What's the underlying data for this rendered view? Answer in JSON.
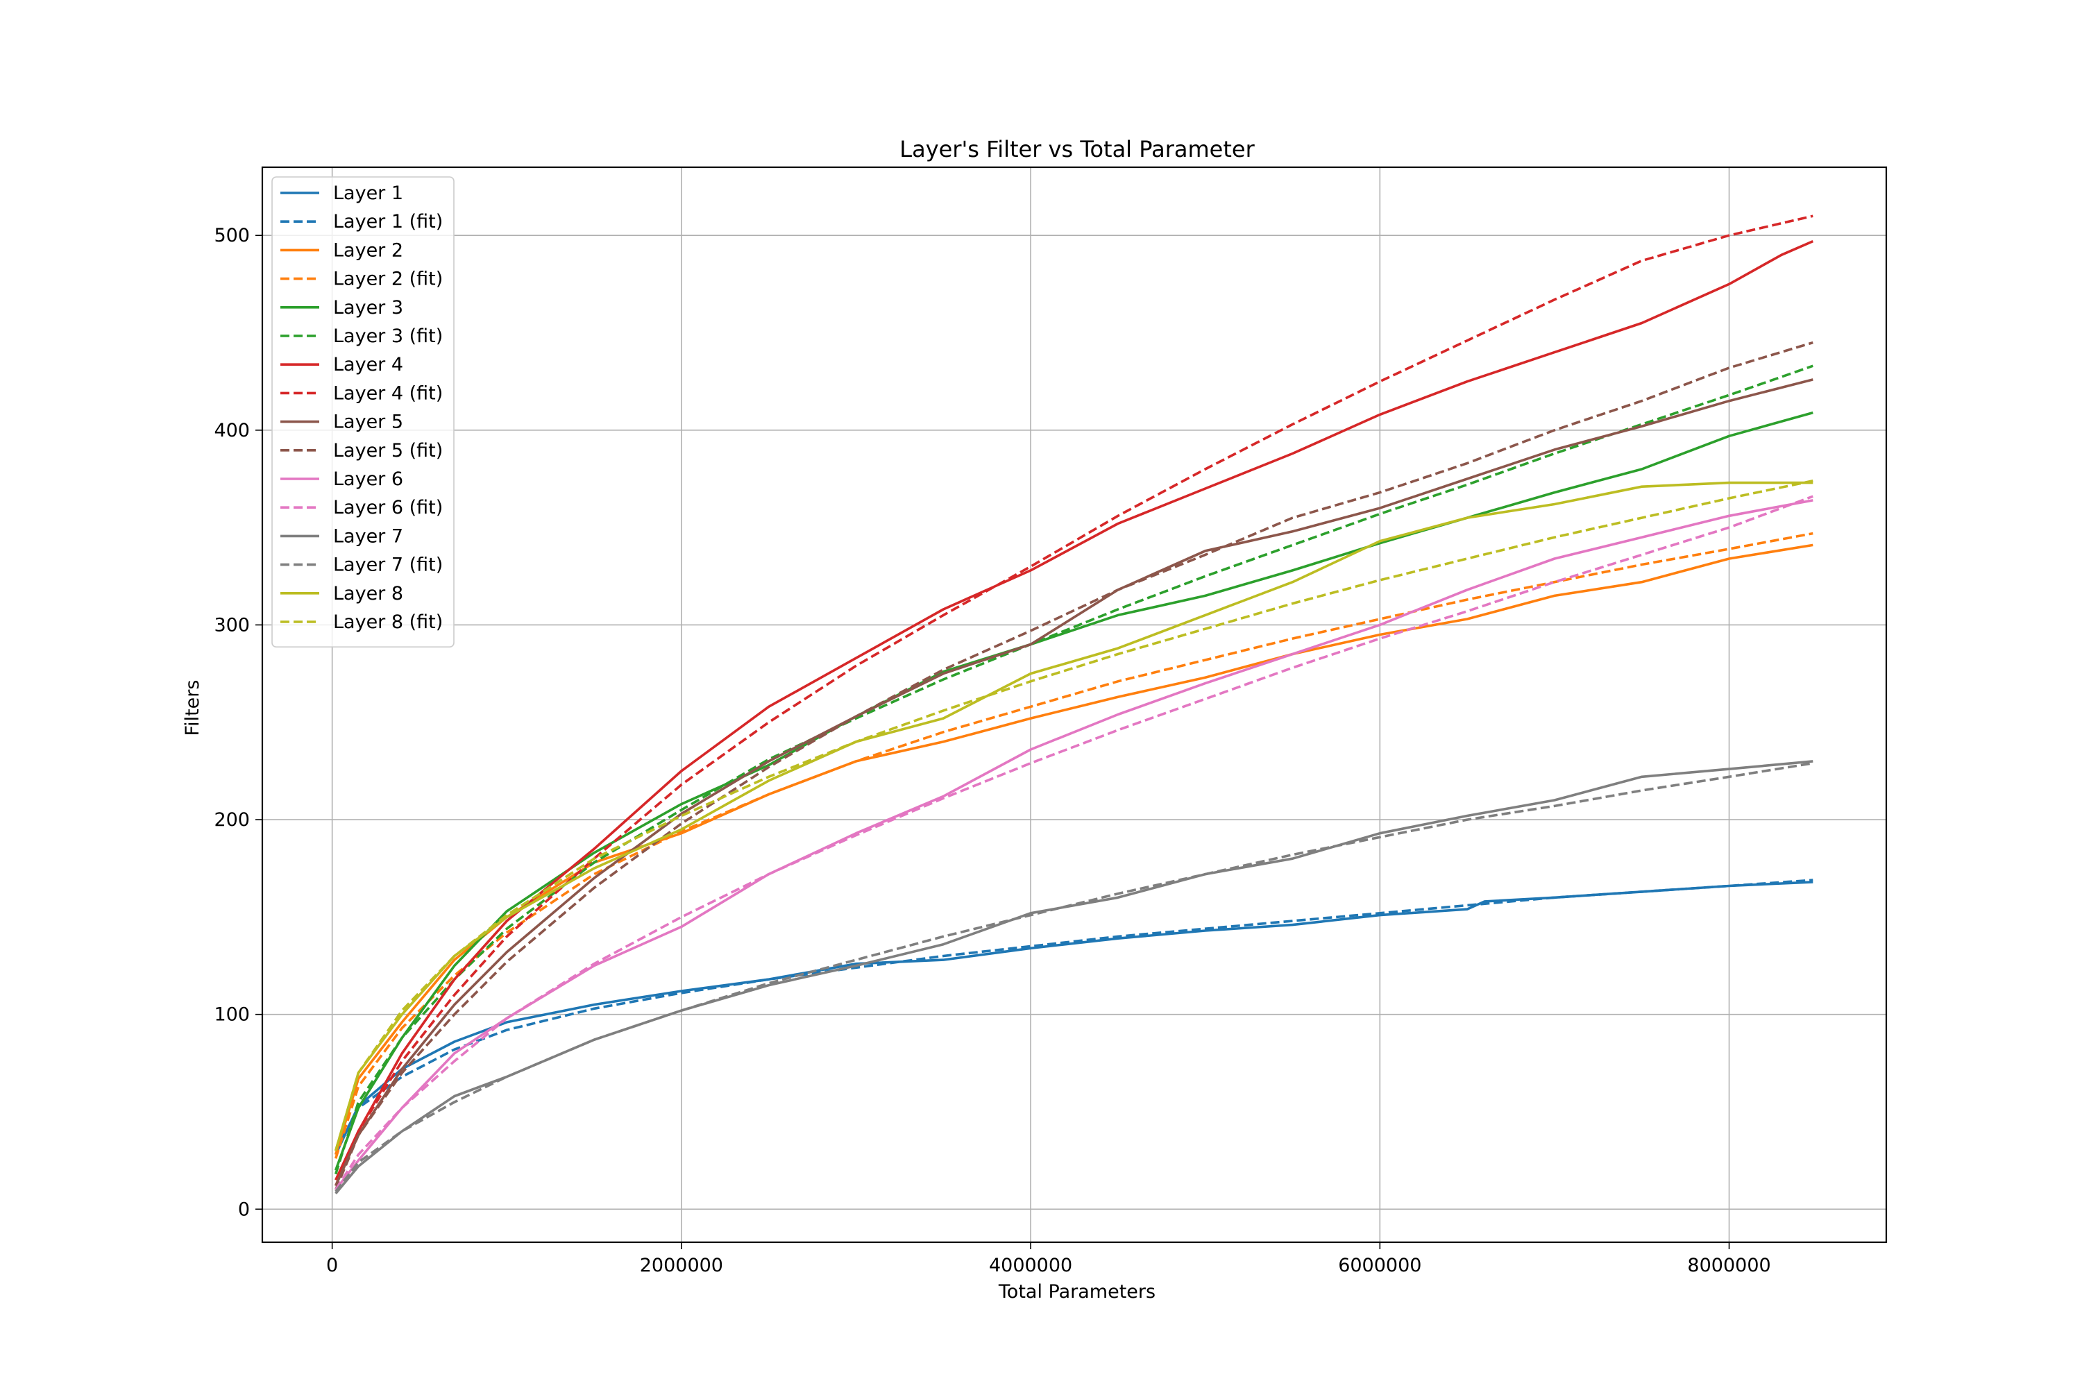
{
  "chart_data": {
    "type": "line",
    "title": "Layer's Filter vs Total Parameter",
    "xlabel": "Total Parameters",
    "ylabel": "Filters",
    "xlim": [
      -400000,
      8900000
    ],
    "ylim": [
      -17,
      535
    ],
    "xticks": [
      0,
      2000000,
      4000000,
      6000000,
      8000000
    ],
    "xtick_labels": [
      "0",
      "2000000",
      "4000000",
      "6000000",
      "8000000"
    ],
    "yticks": [
      0,
      100,
      200,
      300,
      400,
      500
    ],
    "ytick_labels": [
      "0",
      "100",
      "200",
      "300",
      "400",
      "500"
    ],
    "grid": true,
    "legend_position": "top-left",
    "series": [
      {
        "name": "Layer 1",
        "style": "solid",
        "color": "#1f77b4",
        "x": [
          20000,
          150000,
          400000,
          700000,
          1000000,
          1500000,
          2000000,
          2500000,
          3000000,
          3500000,
          4000000,
          4500000,
          5000000,
          5500000,
          6000000,
          6500000,
          6600000,
          7000000,
          7500000,
          8000000,
          8480000
        ],
        "y": [
          28,
          53,
          72,
          86,
          96,
          105,
          112,
          118,
          126,
          128,
          134,
          139,
          143,
          146,
          151,
          154,
          158,
          160,
          163,
          166,
          168
        ]
      },
      {
        "name": "Layer 1 (fit)",
        "style": "dashed",
        "color": "#1f77b4",
        "x": [
          20000,
          150000,
          400000,
          700000,
          1000000,
          1500000,
          2000000,
          2500000,
          3000000,
          3500000,
          4000000,
          4500000,
          5000000,
          5500000,
          6000000,
          6500000,
          7000000,
          7500000,
          8000000,
          8480000
        ],
        "y": [
          30,
          52,
          68,
          82,
          92,
          103,
          111,
          118,
          124,
          130,
          135,
          140,
          144,
          148,
          152,
          156,
          160,
          163,
          166,
          169
        ]
      },
      {
        "name": "Layer 2",
        "style": "solid",
        "color": "#ff7f0e",
        "x": [
          20000,
          150000,
          400000,
          700000,
          1000000,
          1500000,
          2000000,
          2500000,
          3000000,
          3500000,
          4000000,
          4500000,
          5000000,
          5500000,
          6000000,
          6500000,
          7000000,
          7500000,
          8000000,
          8480000
        ],
        "y": [
          28,
          67,
          96,
          128,
          150,
          178,
          193,
          213,
          230,
          240,
          252,
          263,
          273,
          285,
          295,
          303,
          315,
          322,
          334,
          341
        ]
      },
      {
        "name": "Layer 2 (fit)",
        "style": "dashed",
        "color": "#ff7f0e",
        "x": [
          20000,
          150000,
          400000,
          700000,
          1000000,
          1500000,
          2000000,
          2500000,
          3000000,
          3500000,
          4000000,
          4500000,
          5000000,
          5500000,
          6000000,
          6500000,
          7000000,
          7500000,
          8000000,
          8480000
        ],
        "y": [
          26,
          63,
          93,
          120,
          142,
          172,
          194,
          213,
          230,
          245,
          258,
          271,
          282,
          293,
          303,
          313,
          322,
          331,
          339,
          347
        ]
      },
      {
        "name": "Layer 3",
        "style": "solid",
        "color": "#2ca02c",
        "x": [
          20000,
          150000,
          400000,
          700000,
          1000000,
          1500000,
          2000000,
          2500000,
          3000000,
          3500000,
          4000000,
          4500000,
          5000000,
          5500000,
          6000000,
          6500000,
          7000000,
          7500000,
          8000000,
          8480000
        ],
        "y": [
          20,
          52,
          88,
          125,
          153,
          183,
          208,
          228,
          253,
          276,
          290,
          305,
          315,
          328,
          342,
          355,
          368,
          380,
          397,
          409
        ]
      },
      {
        "name": "Layer 3 (fit)",
        "style": "dashed",
        "color": "#2ca02c",
        "x": [
          20000,
          150000,
          400000,
          700000,
          1000000,
          1500000,
          2000000,
          2500000,
          3000000,
          3500000,
          4000000,
          4500000,
          5000000,
          5500000,
          6000000,
          6500000,
          7000000,
          7500000,
          8000000,
          8480000
        ],
        "y": [
          18,
          55,
          88,
          118,
          144,
          178,
          205,
          231,
          252,
          272,
          290,
          308,
          325,
          341,
          357,
          372,
          388,
          403,
          418,
          433
        ]
      },
      {
        "name": "Layer 4",
        "style": "solid",
        "color": "#d62728",
        "x": [
          20000,
          150000,
          400000,
          700000,
          1000000,
          1500000,
          2000000,
          2500000,
          3000000,
          3500000,
          4000000,
          4500000,
          5000000,
          5500000,
          6000000,
          6500000,
          7000000,
          7500000,
          8000000,
          8300000,
          8480000
        ],
        "y": [
          15,
          40,
          80,
          118,
          148,
          185,
          225,
          258,
          283,
          308,
          328,
          352,
          370,
          388,
          408,
          425,
          440,
          455,
          475,
          490,
          497
        ]
      },
      {
        "name": "Layer 4 (fit)",
        "style": "dashed",
        "color": "#d62728",
        "x": [
          20000,
          150000,
          400000,
          700000,
          1000000,
          1500000,
          2000000,
          2500000,
          3000000,
          3500000,
          4000000,
          4500000,
          5000000,
          5500000,
          6000000,
          6500000,
          7000000,
          7500000,
          8000000,
          8480000
        ],
        "y": [
          12,
          40,
          76,
          110,
          140,
          180,
          218,
          250,
          279,
          305,
          330,
          356,
          380,
          403,
          425,
          446,
          467,
          487,
          500,
          510
        ]
      },
      {
        "name": "Layer 5",
        "style": "solid",
        "color": "#8c564b",
        "x": [
          20000,
          150000,
          400000,
          700000,
          1000000,
          1500000,
          2000000,
          2500000,
          3000000,
          3500000,
          4000000,
          4500000,
          5000000,
          5500000,
          6000000,
          6500000,
          7000000,
          7500000,
          8000000,
          8480000
        ],
        "y": [
          12,
          38,
          72,
          105,
          132,
          170,
          203,
          230,
          253,
          275,
          290,
          318,
          338,
          348,
          360,
          375,
          390,
          402,
          415,
          426
        ]
      },
      {
        "name": "Layer 5 (fit)",
        "style": "dashed",
        "color": "#8c564b",
        "x": [
          20000,
          150000,
          400000,
          700000,
          1000000,
          1500000,
          2000000,
          2500000,
          3000000,
          3500000,
          4000000,
          4500000,
          5000000,
          5500000,
          6000000,
          6500000,
          7000000,
          7500000,
          8000000,
          8480000
        ],
        "y": [
          10,
          38,
          70,
          100,
          127,
          165,
          198,
          227,
          253,
          277,
          297,
          318,
          336,
          355,
          368,
          383,
          400,
          415,
          432,
          445
        ]
      },
      {
        "name": "Layer 6",
        "style": "solid",
        "color": "#e377c2",
        "x": [
          20000,
          150000,
          400000,
          700000,
          1000000,
          1500000,
          2000000,
          2500000,
          3000000,
          3500000,
          4000000,
          4500000,
          5000000,
          5500000,
          6000000,
          6500000,
          7000000,
          7500000,
          8000000,
          8480000
        ],
        "y": [
          10,
          25,
          52,
          80,
          98,
          125,
          145,
          172,
          193,
          212,
          236,
          254,
          270,
          285,
          300,
          318,
          334,
          345,
          356,
          364
        ]
      },
      {
        "name": "Layer 6 (fit)",
        "style": "dashed",
        "color": "#e377c2",
        "x": [
          20000,
          150000,
          400000,
          700000,
          1000000,
          1500000,
          2000000,
          2500000,
          3000000,
          3500000,
          4000000,
          4500000,
          5000000,
          5500000,
          6000000,
          6500000,
          7000000,
          7500000,
          8000000,
          8480000
        ],
        "y": [
          10,
          28,
          52,
          76,
          98,
          126,
          150,
          172,
          192,
          211,
          229,
          246,
          262,
          278,
          293,
          307,
          322,
          336,
          350,
          366
        ]
      },
      {
        "name": "Layer 7",
        "style": "solid",
        "color": "#7f7f7f",
        "x": [
          20000,
          150000,
          400000,
          700000,
          1000000,
          1500000,
          2000000,
          2500000,
          3000000,
          3500000,
          4000000,
          4500000,
          5000000,
          5500000,
          6000000,
          6500000,
          7000000,
          7500000,
          8000000,
          8480000
        ],
        "y": [
          8,
          22,
          40,
          58,
          68,
          87,
          102,
          115,
          125,
          136,
          152,
          160,
          172,
          180,
          193,
          202,
          210,
          222,
          226,
          230
        ]
      },
      {
        "name": "Layer 7 (fit)",
        "style": "dashed",
        "color": "#7f7f7f",
        "x": [
          20000,
          150000,
          400000,
          700000,
          1000000,
          1500000,
          2000000,
          2500000,
          3000000,
          3500000,
          4000000,
          4500000,
          5000000,
          5500000,
          6000000,
          6500000,
          7000000,
          7500000,
          8000000,
          8480000
        ],
        "y": [
          9,
          24,
          40,
          55,
          68,
          87,
          102,
          116,
          128,
          140,
          151,
          162,
          172,
          182,
          191,
          200,
          207,
          215,
          222,
          229
        ]
      },
      {
        "name": "Layer 8",
        "style": "solid",
        "color": "#bcbd22",
        "x": [
          20000,
          150000,
          400000,
          700000,
          1000000,
          1500000,
          2000000,
          2500000,
          3000000,
          3500000,
          4000000,
          4500000,
          5000000,
          5500000,
          6000000,
          6500000,
          7000000,
          7500000,
          8000000,
          8480000
        ],
        "y": [
          30,
          70,
          100,
          130,
          150,
          175,
          195,
          220,
          240,
          252,
          275,
          288,
          305,
          322,
          343,
          355,
          362,
          371,
          373,
          373
        ]
      },
      {
        "name": "Layer 8 (fit)",
        "style": "dashed",
        "color": "#bcbd22",
        "x": [
          20000,
          150000,
          400000,
          700000,
          1000000,
          1500000,
          2000000,
          2500000,
          3000000,
          3500000,
          4000000,
          4500000,
          5000000,
          5500000,
          6000000,
          6500000,
          7000000,
          7500000,
          8000000,
          8480000
        ],
        "y": [
          30,
          70,
          102,
          130,
          151,
          180,
          202,
          222,
          240,
          256,
          271,
          285,
          298,
          311,
          323,
          334,
          345,
          355,
          365,
          374
        ]
      }
    ]
  }
}
